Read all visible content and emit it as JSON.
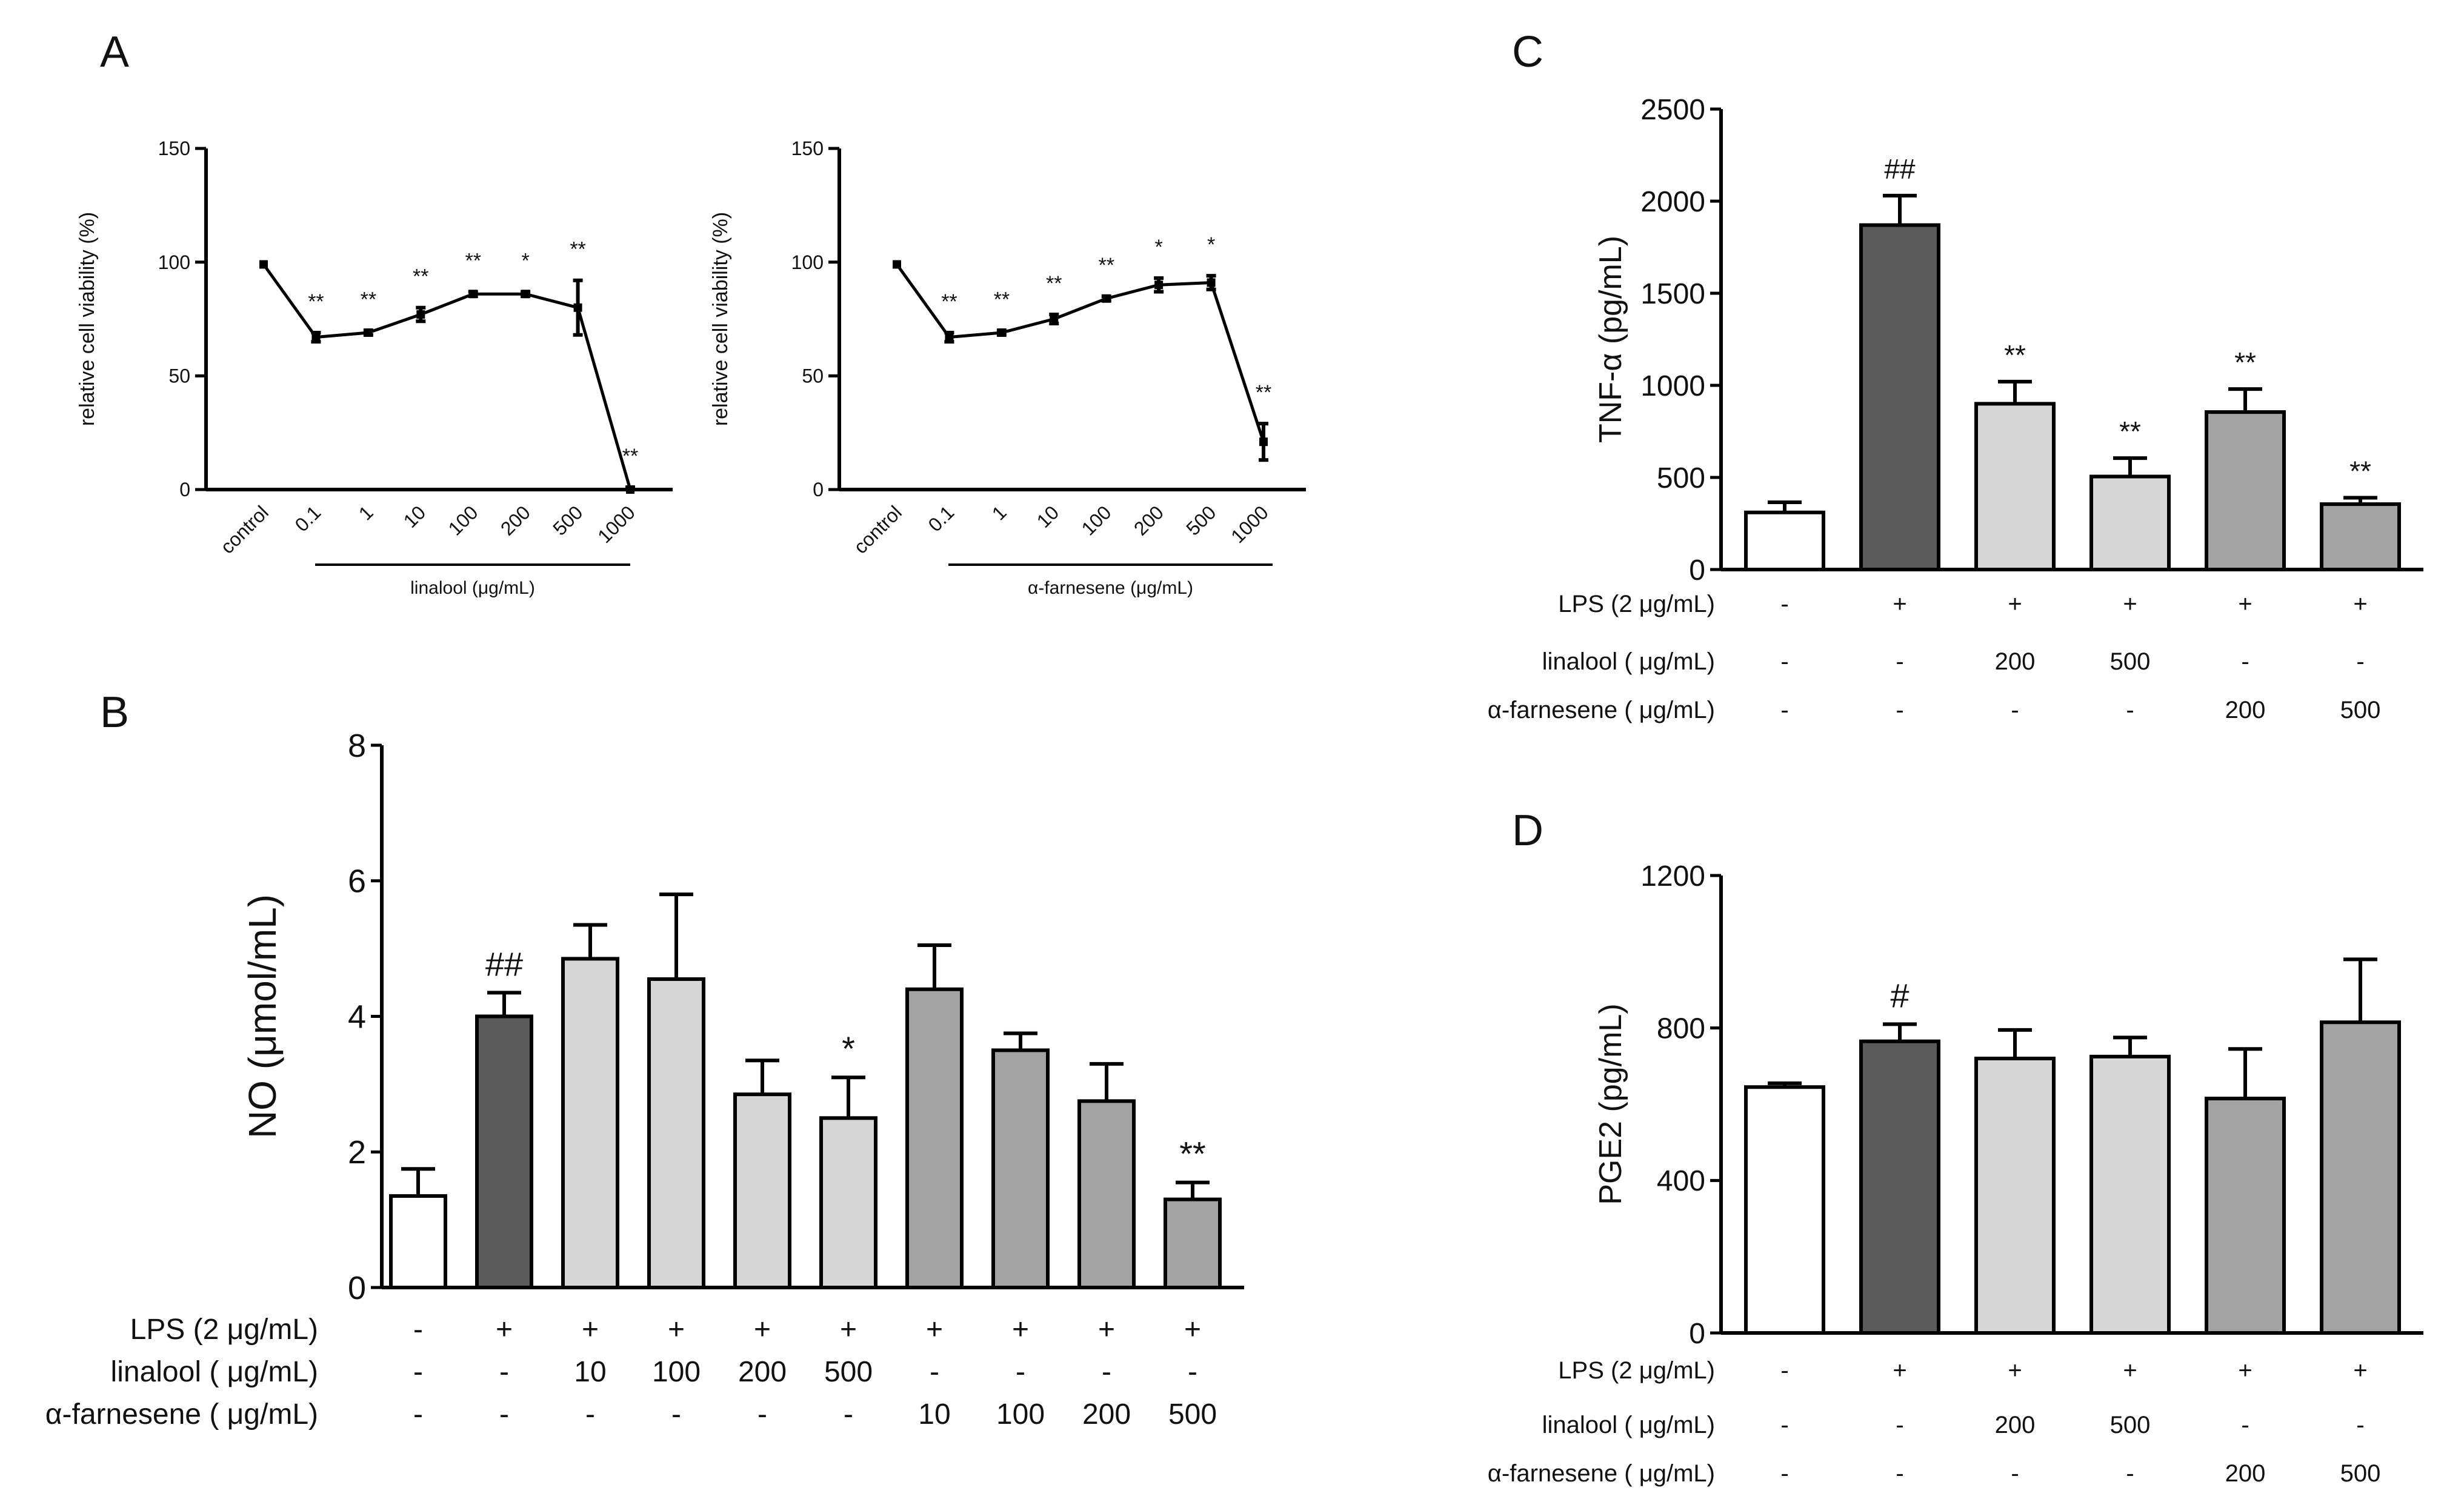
{
  "panels": {
    "A": "A",
    "B": "B",
    "C": "C",
    "D": "D"
  },
  "colors": {
    "control": "#ffffff",
    "lps": "#5a5a5a",
    "linalool": "#d6d6d6",
    "farnesene": "#a3a3a3",
    "stroke": "#000000"
  },
  "chart_data": [
    {
      "id": "A1",
      "type": "line",
      "ylabel": "relative cell viability (%)",
      "xlabel": "linalool (μg/mL)",
      "categories": [
        "control",
        "0.1",
        "1",
        "10",
        "100",
        "200",
        "500",
        "1000"
      ],
      "values": [
        99,
        67,
        69,
        77,
        86,
        86,
        80,
        0
      ],
      "errors": [
        0,
        2,
        1,
        3,
        1,
        1,
        12,
        1
      ],
      "annotations": [
        "",
        "**",
        "**",
        "**",
        "**",
        "*",
        "**",
        "**"
      ],
      "ylim": [
        0,
        150
      ],
      "yticks": [
        0,
        50,
        100,
        150
      ]
    },
    {
      "id": "A2",
      "type": "line",
      "ylabel": "relative cell viability (%)",
      "xlabel": "α-farnesene (μg/mL)",
      "categories": [
        "control",
        "0.1",
        "1",
        "10",
        "100",
        "200",
        "500",
        "1000"
      ],
      "values": [
        99,
        67,
        69,
        75,
        84,
        90,
        91,
        21
      ],
      "errors": [
        0,
        2,
        1,
        2,
        1,
        3,
        3,
        8
      ],
      "annotations": [
        "",
        "**",
        "**",
        "**",
        "**",
        "*",
        "*",
        "**"
      ],
      "ylim": [
        0,
        150
      ],
      "yticks": [
        0,
        50,
        100,
        150
      ]
    },
    {
      "id": "B",
      "type": "bar",
      "ylabel": "NO (μmol/mL)",
      "values": [
        1.35,
        4.0,
        4.85,
        4.55,
        2.85,
        2.5,
        4.4,
        3.5,
        2.75,
        1.3
      ],
      "errors": [
        0.4,
        0.35,
        0.5,
        1.25,
        0.5,
        0.6,
        0.65,
        0.25,
        0.55,
        0.25
      ],
      "groups": [
        "control",
        "lps",
        "linalool",
        "linalool",
        "linalool",
        "linalool",
        "farnesene",
        "farnesene",
        "farnesene",
        "farnesene"
      ],
      "annotations": [
        "",
        "##",
        "",
        "",
        "",
        "*",
        "",
        "",
        "",
        "**"
      ],
      "ylim": [
        0,
        8
      ],
      "yticks": [
        0,
        2,
        4,
        6,
        8
      ],
      "rows": [
        {
          "label": "LPS (2 μg/mL)",
          "values": [
            "-",
            "+",
            "+",
            "+",
            "+",
            "+",
            "+",
            "+",
            "+",
            "+"
          ]
        },
        {
          "label": "linalool ( μg/mL)",
          "values": [
            "-",
            "-",
            "10",
            "100",
            "200",
            "500",
            "-",
            "-",
            "-",
            "-"
          ]
        },
        {
          "label": "α-farnesene ( μg/mL)",
          "values": [
            "-",
            "-",
            "-",
            "-",
            "-",
            "-",
            "10",
            "100",
            "200",
            "500"
          ]
        }
      ]
    },
    {
      "id": "C",
      "type": "bar",
      "ylabel": "TNF-α (pg/mL)",
      "values": [
        310,
        1870,
        900,
        505,
        855,
        355
      ],
      "errors": [
        55,
        160,
        120,
        100,
        125,
        35
      ],
      "groups": [
        "control",
        "lps",
        "linalool",
        "linalool",
        "farnesene",
        "farnesene"
      ],
      "annotations": [
        "",
        "##",
        "**",
        "**",
        "**",
        "**"
      ],
      "ylim": [
        0,
        2500
      ],
      "yticks": [
        0,
        500,
        1000,
        1500,
        2000,
        2500
      ],
      "rows": [
        {
          "label": "LPS (2 μg/mL)",
          "values": [
            "-",
            "+",
            "+",
            "+",
            "+",
            "+"
          ]
        },
        {
          "label": "linalool ( μg/mL)",
          "values": [
            "-",
            "-",
            "200",
            "500",
            "-",
            "-"
          ]
        },
        {
          "label": "α-farnesene ( μg/mL)",
          "values": [
            "-",
            "-",
            "-",
            "-",
            "200",
            "500"
          ]
        }
      ]
    },
    {
      "id": "D",
      "type": "bar",
      "ylabel": "PGE2 (pg/mL)",
      "values": [
        645,
        765,
        720,
        725,
        615,
        815
      ],
      "errors": [
        10,
        45,
        75,
        50,
        130,
        165
      ],
      "groups": [
        "control",
        "lps",
        "linalool",
        "linalool",
        "farnesene",
        "farnesene"
      ],
      "annotations": [
        "",
        "#",
        "",
        "",
        "",
        ""
      ],
      "ylim": [
        0,
        1200
      ],
      "yticks": [
        0,
        400,
        800,
        1200
      ],
      "rows": [
        {
          "label": "LPS (2 μg/mL)",
          "values": [
            "-",
            "+",
            "+",
            "+",
            "+",
            "+"
          ]
        },
        {
          "label": "linalool ( μg/mL)",
          "values": [
            "-",
            "-",
            "200",
            "500",
            "-",
            "-"
          ]
        },
        {
          "label": "α-farnesene ( μg/mL)",
          "values": [
            "-",
            "-",
            "-",
            "-",
            "200",
            "500"
          ]
        }
      ]
    }
  ]
}
